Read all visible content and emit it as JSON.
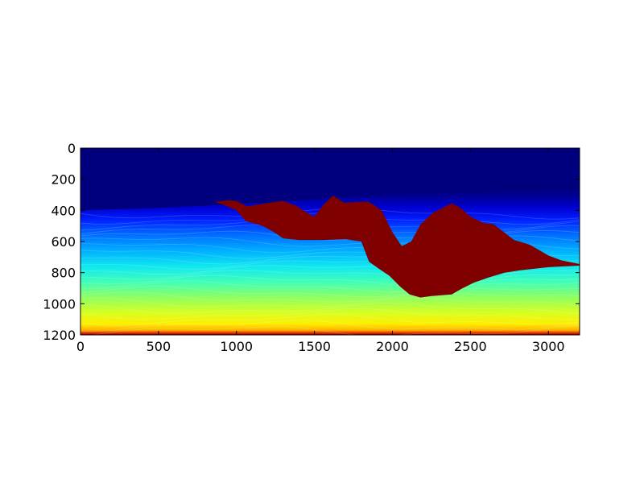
{
  "chart_data": {
    "type": "heatmap",
    "title": "",
    "xlabel": "",
    "ylabel": "",
    "colormap": "jet",
    "xlim": [
      0,
      3200
    ],
    "ylim": [
      1200,
      0
    ],
    "y_inverted": true,
    "grid": false,
    "x_ticks": [
      0,
      500,
      1000,
      1500,
      2000,
      2500,
      3000
    ],
    "y_ticks": [
      0,
      200,
      400,
      600,
      800,
      1000,
      1200
    ],
    "x_tick_labels": [
      "0",
      "500",
      "1000",
      "1500",
      "2000",
      "2500",
      "3000"
    ],
    "y_tick_labels": [
      "0",
      "200",
      "400",
      "600",
      "800",
      "1000",
      "1200"
    ],
    "water_bottom_depth": [
      [
        0,
        400
      ],
      [
        500,
        385
      ],
      [
        1000,
        360
      ],
      [
        1500,
        330
      ],
      [
        2000,
        300
      ],
      [
        2500,
        285
      ],
      [
        3000,
        275
      ],
      [
        3200,
        270
      ]
    ],
    "color_bands": [
      {
        "depth": 0,
        "color": "#00007f"
      },
      {
        "depth": 300,
        "color": "#00008c"
      },
      {
        "depth": 380,
        "color": "#0000d0"
      },
      {
        "depth": 460,
        "color": "#0020ff"
      },
      {
        "depth": 560,
        "color": "#0070ff"
      },
      {
        "depth": 660,
        "color": "#00b0ff"
      },
      {
        "depth": 760,
        "color": "#10e8f0"
      },
      {
        "depth": 860,
        "color": "#40ffb8"
      },
      {
        "depth": 960,
        "color": "#90ff60"
      },
      {
        "depth": 1060,
        "color": "#d8ff20"
      },
      {
        "depth": 1130,
        "color": "#ffee00"
      },
      {
        "depth": 1170,
        "color": "#ffb000"
      },
      {
        "depth": 1190,
        "color": "#e02000"
      },
      {
        "depth": 1200,
        "color": "#800000"
      }
    ],
    "salt_body": {
      "color": "#800000",
      "outline": [
        [
          860,
          345
        ],
        [
          950,
          335
        ],
        [
          1000,
          340
        ],
        [
          1070,
          375
        ],
        [
          1150,
          360
        ],
        [
          1250,
          345
        ],
        [
          1300,
          340
        ],
        [
          1380,
          370
        ],
        [
          1460,
          420
        ],
        [
          1500,
          440
        ],
        [
          1560,
          360
        ],
        [
          1620,
          305
        ],
        [
          1690,
          350
        ],
        [
          1790,
          345
        ],
        [
          1850,
          345
        ],
        [
          1930,
          400
        ],
        [
          2000,
          540
        ],
        [
          2060,
          630
        ],
        [
          2120,
          600
        ],
        [
          2180,
          490
        ],
        [
          2260,
          415
        ],
        [
          2380,
          355
        ],
        [
          2430,
          380
        ],
        [
          2500,
          440
        ],
        [
          2580,
          480
        ],
        [
          2650,
          490
        ],
        [
          2780,
          590
        ],
        [
          2880,
          620
        ],
        [
          3000,
          690
        ],
        [
          3080,
          720
        ],
        [
          3200,
          745
        ],
        [
          3200,
          755
        ],
        [
          3100,
          760
        ],
        [
          3000,
          765
        ],
        [
          2820,
          785
        ],
        [
          2720,
          800
        ],
        [
          2620,
          830
        ],
        [
          2520,
          865
        ],
        [
          2440,
          905
        ],
        [
          2380,
          940
        ],
        [
          2250,
          950
        ],
        [
          2180,
          960
        ],
        [
          2110,
          940
        ],
        [
          2050,
          890
        ],
        [
          1980,
          820
        ],
        [
          1920,
          780
        ],
        [
          1850,
          730
        ],
        [
          1800,
          600
        ],
        [
          1700,
          585
        ],
        [
          1560,
          590
        ],
        [
          1400,
          590
        ],
        [
          1300,
          580
        ],
        [
          1240,
          540
        ],
        [
          1170,
          500
        ],
        [
          1100,
          480
        ],
        [
          1060,
          470
        ],
        [
          1000,
          400
        ],
        [
          920,
          365
        ]
      ]
    }
  }
}
